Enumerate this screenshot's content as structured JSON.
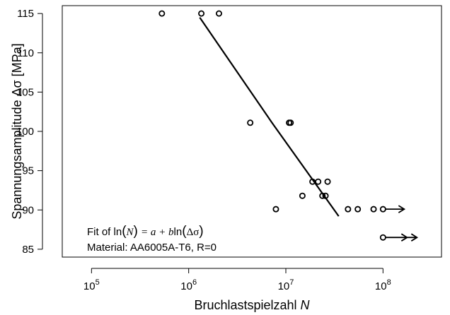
{
  "chart_data": {
    "type": "scatter",
    "xlabel": "Bruchlastspielzahl",
    "xlabel_var": "N",
    "ylabel": "Spannungsamplitude Δσ [MPa]",
    "x_scale": "log",
    "xlim": [
      50000,
      400000000
    ],
    "ylim": [
      84,
      116
    ],
    "x_tick_labels": [
      {
        "value": 100000,
        "base": "10",
        "exp": "5"
      },
      {
        "value": 1000000,
        "base": "10",
        "exp": "6"
      },
      {
        "value": 10000000,
        "base": "10",
        "exp": "7"
      },
      {
        "value": 100000000,
        "base": "10",
        "exp": "8"
      }
    ],
    "y_ticks": [
      85,
      90,
      95,
      100,
      105,
      110,
      115
    ],
    "grid": false,
    "points": [
      {
        "x": 530000,
        "y": 115
      },
      {
        "x": 1350000,
        "y": 115
      },
      {
        "x": 2050000,
        "y": 115
      },
      {
        "x": 4300000,
        "y": 101.1
      },
      {
        "x": 10800000,
        "y": 101.1
      },
      {
        "x": 11200000,
        "y": 101.1
      },
      {
        "x": 7900000,
        "y": 90.1
      },
      {
        "x": 14800000,
        "y": 91.8
      },
      {
        "x": 18800000,
        "y": 93.6
      },
      {
        "x": 21500000,
        "y": 93.6
      },
      {
        "x": 23800000,
        "y": 91.8
      },
      {
        "x": 25600000,
        "y": 91.8
      },
      {
        "x": 26900000,
        "y": 93.6
      },
      {
        "x": 43600000,
        "y": 90.1
      },
      {
        "x": 55000000,
        "y": 90.1
      },
      {
        "x": 80000000,
        "y": 90.1
      },
      {
        "x": 100000000,
        "y": 90.1
      },
      {
        "x": 100000000,
        "y": 86.5
      }
    ],
    "runouts": [
      {
        "x": 100000000,
        "y": 90.1,
        "arrows": 1
      },
      {
        "x": 100000000,
        "y": 86.5,
        "arrows": 2
      }
    ],
    "fit_line": [
      {
        "x": 1300000,
        "y": 114.5
      },
      {
        "x": 7300000,
        "y": 101
      },
      {
        "x": 35000000,
        "y": 89.2
      }
    ],
    "annotation": {
      "fit_prefix": "Fit of",
      "ln": "ln",
      "N": "N",
      "eq": "= a + b",
      "delta_sigma": "Δσ",
      "material": "Material: AA6005A-T6, R=0"
    }
  }
}
